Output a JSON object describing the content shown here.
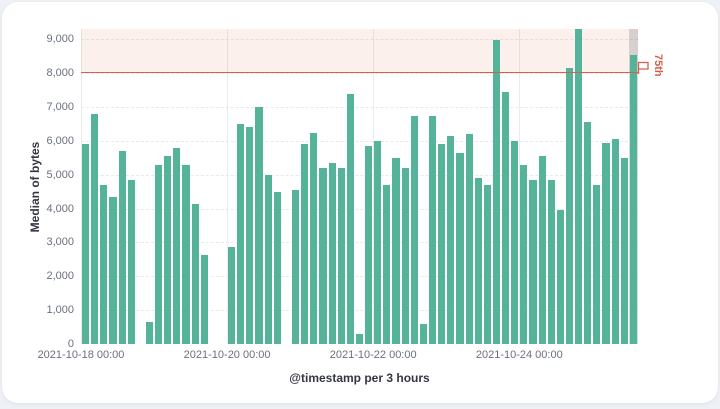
{
  "panel": {
    "background": "#ffffff"
  },
  "chart_data": {
    "type": "bar",
    "title": "",
    "ylabel": "Median of bytes",
    "xlabel": "@timestamp per 3 hours",
    "ymax": 9310,
    "ylim": [
      0,
      9310
    ],
    "grid": "horizontal-dashed",
    "bar_color": "#54b399",
    "axis_text_color": "#69707d",
    "axis_title_color": "#343741",
    "yticks": [
      {
        "value": 0,
        "label": "0"
      },
      {
        "value": 1000,
        "label": "1,000"
      },
      {
        "value": 2000,
        "label": "2,000"
      },
      {
        "value": 3000,
        "label": "3,000"
      },
      {
        "value": 4000,
        "label": "4,000"
      },
      {
        "value": 5000,
        "label": "5,000"
      },
      {
        "value": 6000,
        "label": "6,000"
      },
      {
        "value": 7000,
        "label": "7,000"
      },
      {
        "value": 8000,
        "label": "8,000"
      },
      {
        "value": 9000,
        "label": "9,000"
      }
    ],
    "xticks": [
      {
        "slot": 0,
        "label": "2021-10-18 00:00"
      },
      {
        "slot": 16,
        "label": "2021-10-20 00:00"
      },
      {
        "slot": 32,
        "label": "2021-10-22 00:00"
      },
      {
        "slot": 48,
        "label": "2021-10-24 00:00"
      }
    ],
    "threshold": {
      "value": 8050,
      "label": "75th",
      "color": "#d6604c",
      "fill_above_color": "rgba(230,105,80,0.10)",
      "marker": "flag-icon"
    },
    "hovered_bar_index": 60,
    "hover_band_color": "rgba(105,110,120,0.25)",
    "values": [
      5900,
      6800,
      4700,
      4350,
      5700,
      4850,
      null,
      650,
      5280,
      5550,
      5780,
      5280,
      4150,
      2630,
      null,
      null,
      2860,
      6500,
      6400,
      7000,
      5000,
      4500,
      null,
      4550,
      5900,
      6250,
      5200,
      5350,
      5200,
      7400,
      300,
      5850,
      6000,
      4700,
      5500,
      5200,
      6750,
      600,
      6750,
      5900,
      6150,
      5650,
      6200,
      4900,
      4700,
      9000,
      7450,
      6000,
      5300,
      4850,
      5550,
      4850,
      3950,
      8150,
      9310,
      6550,
      4700,
      5950,
      6050,
      5500,
      8550
    ]
  }
}
